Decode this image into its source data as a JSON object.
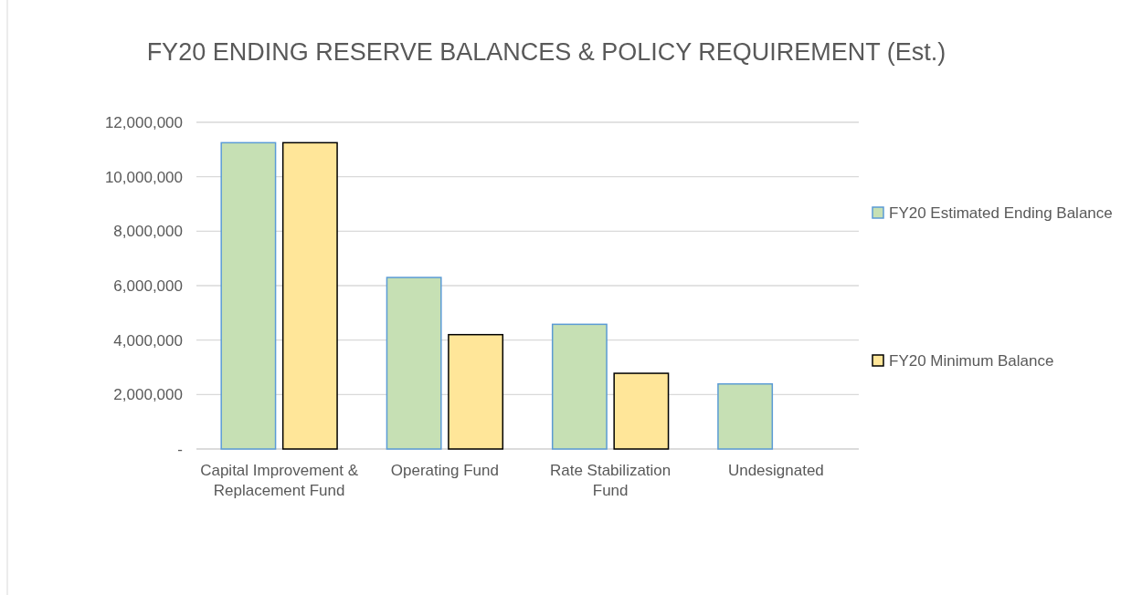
{
  "chart_data": {
    "type": "bar",
    "title": "FY20 ENDING RESERVE BALANCES & POLICY REQUIREMENT (Est.)",
    "categories": [
      "Capital Improvement & Replacement Fund",
      "Operating Fund",
      "Rate Stabilization Fund",
      "Undesignated"
    ],
    "series": [
      {
        "name": "FY20 Estimated Ending Balance",
        "color": "#c6e0b4",
        "values": [
          11250000,
          6300000,
          4580000,
          2390000
        ]
      },
      {
        "name": "FY20 Minimum Balance",
        "color": "#ffe699",
        "values": [
          11250000,
          4200000,
          2780000,
          null
        ]
      }
    ],
    "ylim": [
      0,
      12000000
    ],
    "yticks": [
      {
        "value": 0,
        "label": "-"
      },
      {
        "value": 2000000,
        "label": "2,000,000"
      },
      {
        "value": 4000000,
        "label": "4,000,000"
      },
      {
        "value": 6000000,
        "label": "6,000,000"
      },
      {
        "value": 8000000,
        "label": "8,000,000"
      },
      {
        "value": 10000000,
        "label": "10,000,000"
      },
      {
        "value": 12000000,
        "label": "12,000,000"
      }
    ],
    "grid": "y",
    "legend": "right"
  }
}
